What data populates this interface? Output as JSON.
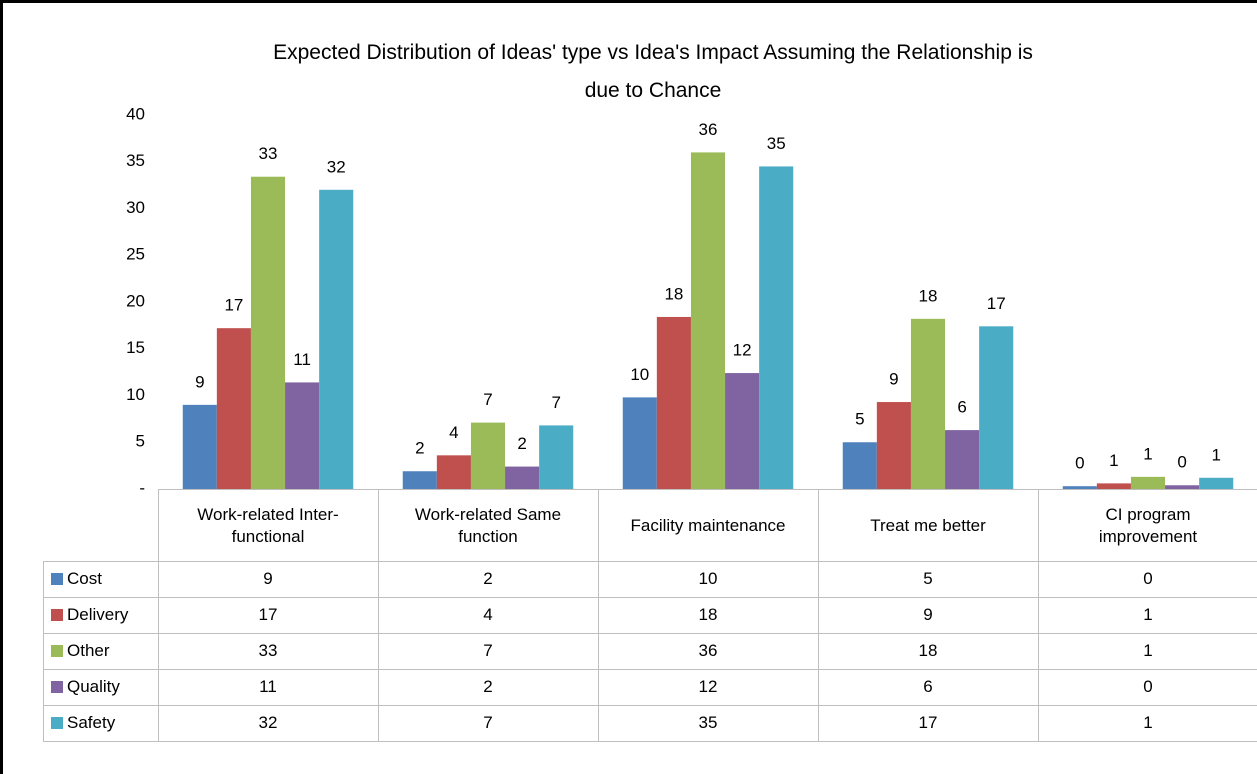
{
  "chart_data": {
    "type": "bar",
    "title": "Expected Distribution of Ideas' type vs Idea's Impact Assuming the Relationship is due to Chance",
    "categories": [
      "Work-related Inter-functional",
      "Work-related Same function",
      "Facility maintenance",
      "Treat me better",
      "CI program improvement"
    ],
    "series": [
      {
        "name": "Cost",
        "color": "#4f81bd",
        "values": [
          9.0,
          1.9,
          9.8,
          5.0,
          0.3
        ],
        "value_labels": [
          "9",
          "2",
          "10",
          "5",
          "0"
        ]
      },
      {
        "name": "Delivery",
        "color": "#c0504d",
        "values": [
          17.2,
          3.6,
          18.4,
          9.3,
          0.6
        ],
        "value_labels": [
          "17",
          "4",
          "18",
          "9",
          "1"
        ]
      },
      {
        "name": "Other",
        "color": "#9bbb59",
        "values": [
          33.4,
          7.1,
          36.0,
          18.2,
          1.3
        ],
        "value_labels": [
          "33",
          "7",
          "36",
          "18",
          "1"
        ]
      },
      {
        "name": "Quality",
        "color": "#8064a2",
        "values": [
          11.4,
          2.4,
          12.4,
          6.3,
          0.4
        ],
        "value_labels": [
          "11",
          "2",
          "12",
          "6",
          "0"
        ]
      },
      {
        "name": "Safety",
        "color": "#4bacc6",
        "values": [
          32.0,
          6.8,
          34.5,
          17.4,
          1.2
        ],
        "value_labels": [
          "32",
          "7",
          "35",
          "17",
          "1"
        ]
      }
    ],
    "ylim": [
      0,
      40
    ],
    "yticks": [
      {
        "value": 0,
        "label": "-"
      },
      5,
      10,
      15,
      20,
      25,
      30,
      35,
      40
    ],
    "grid": false,
    "legend": "data-table"
  }
}
